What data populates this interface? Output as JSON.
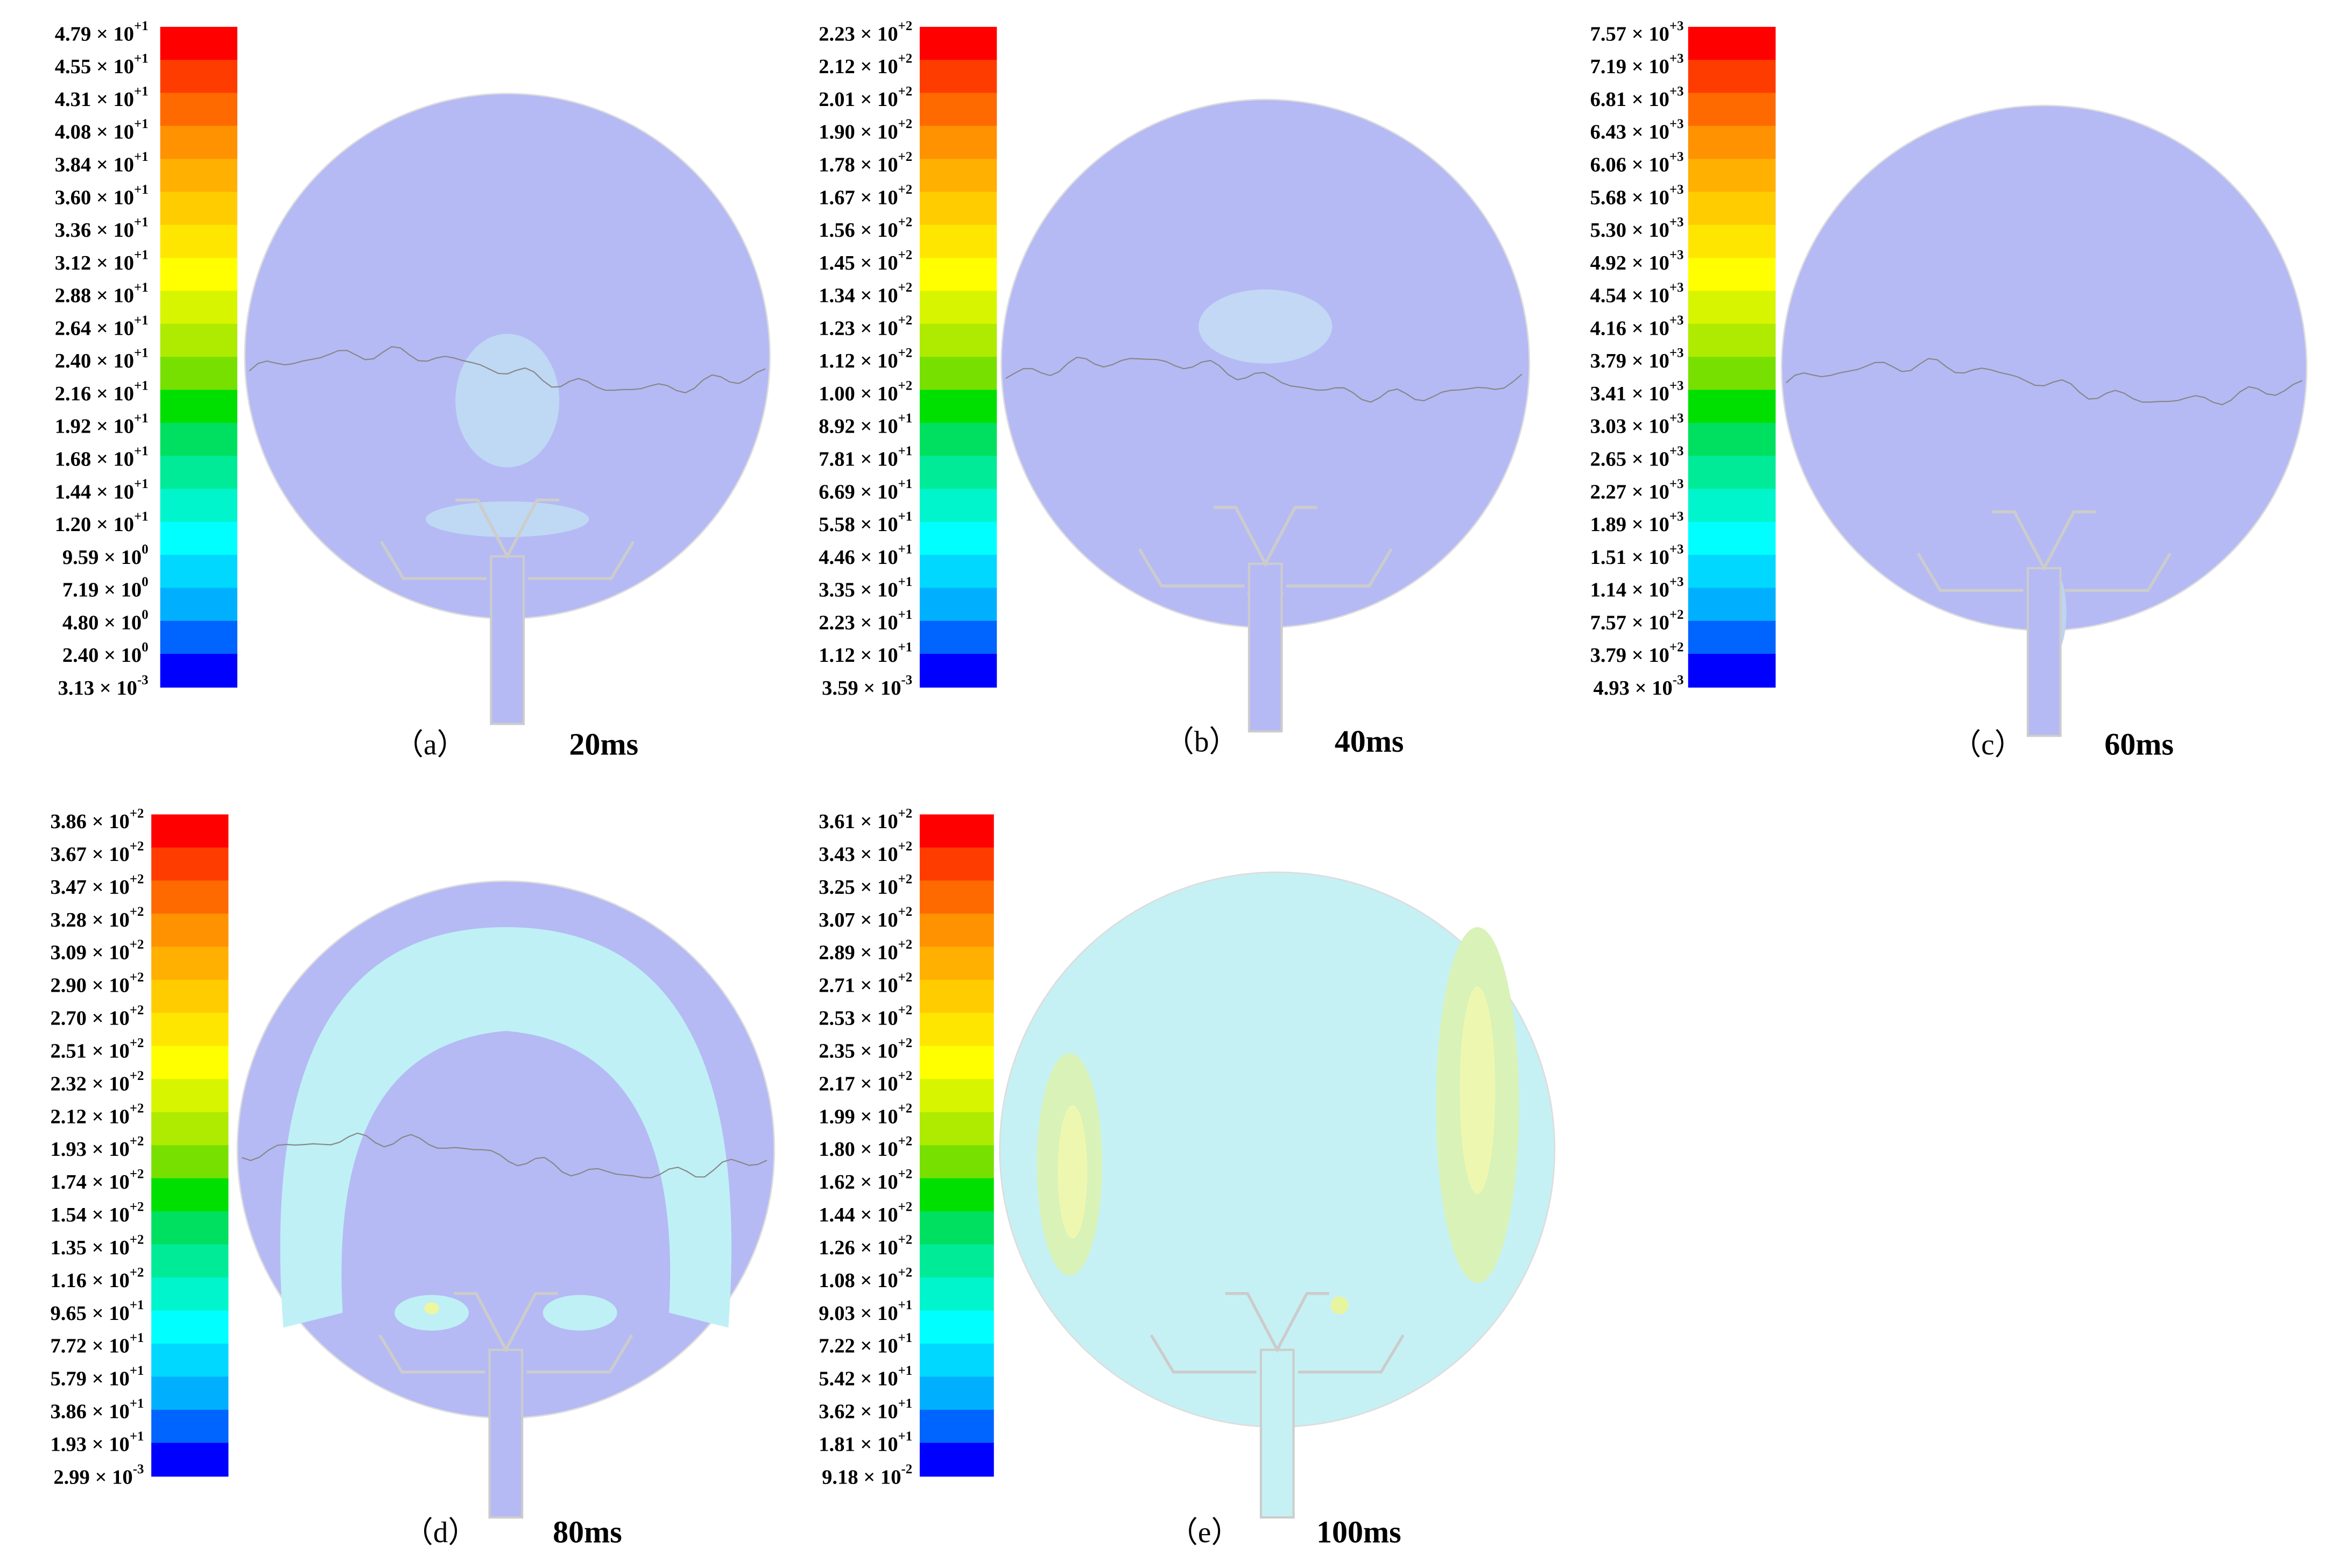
{
  "figure": {
    "colormap": [
      "#ff0000",
      "#ff3c00",
      "#ff6a00",
      "#ff9200",
      "#ffb000",
      "#ffcc00",
      "#ffe600",
      "#ffff00",
      "#d8f500",
      "#aeeb00",
      "#78e000",
      "#00e000",
      "#00e060",
      "#00eb98",
      "#00f5cc",
      "#00ffff",
      "#00d8ff",
      "#00b0ff",
      "#0064ff",
      "#0000ff"
    ],
    "panels": [
      {
        "caption": "（a）",
        "time": "20ms",
        "labels": [
          [
            "4.79 × 10",
            "+1"
          ],
          [
            "4.55 × 10",
            "+1"
          ],
          [
            "4.31 × 10",
            "+1"
          ],
          [
            "4.08 × 10",
            "+1"
          ],
          [
            "3.84 × 10",
            "+1"
          ],
          [
            "3.60 × 10",
            "+1"
          ],
          [
            "3.36 × 10",
            "+1"
          ],
          [
            "3.12 × 10",
            "+1"
          ],
          [
            "2.88 × 10",
            "+1"
          ],
          [
            "2.64 × 10",
            "+1"
          ],
          [
            "2.40 × 10",
            "+1"
          ],
          [
            "2.16 × 10",
            "+1"
          ],
          [
            "1.92 × 10",
            "+1"
          ],
          [
            "1.68 × 10",
            "+1"
          ],
          [
            "1.44 × 10",
            "+1"
          ],
          [
            "1.20 × 10",
            "+1"
          ],
          [
            "9.59 × 10",
            "0"
          ],
          [
            "7.19 × 10",
            "0"
          ],
          [
            "4.80 × 10",
            "0"
          ],
          [
            "2.40 × 10",
            "0"
          ],
          [
            "3.13 × 10",
            "-3"
          ]
        ]
      },
      {
        "caption": "（b）",
        "time": "40ms",
        "labels": [
          [
            "2.23 × 10",
            "+2"
          ],
          [
            "2.12 × 10",
            "+2"
          ],
          [
            "2.01 × 10",
            "+2"
          ],
          [
            "1.90 × 10",
            "+2"
          ],
          [
            "1.78 × 10",
            "+2"
          ],
          [
            "1.67 × 10",
            "+2"
          ],
          [
            "1.56 × 10",
            "+2"
          ],
          [
            "1.45 × 10",
            "+2"
          ],
          [
            "1.34 × 10",
            "+2"
          ],
          [
            "1.23 × 10",
            "+2"
          ],
          [
            "1.12 × 10",
            "+2"
          ],
          [
            "1.00 × 10",
            "+2"
          ],
          [
            "8.92 × 10",
            "+1"
          ],
          [
            "7.81 × 10",
            "+1"
          ],
          [
            "6.69 × 10",
            "+1"
          ],
          [
            "5.58 × 10",
            "+1"
          ],
          [
            "4.46 × 10",
            "+1"
          ],
          [
            "3.35 × 10",
            "+1"
          ],
          [
            "2.23 × 10",
            "+1"
          ],
          [
            "1.12 × 10",
            "+1"
          ],
          [
            "3.59 × 10",
            "-3"
          ]
        ]
      },
      {
        "caption": "（c）",
        "time": "60ms",
        "labels": [
          [
            "7.57 × 10",
            "+3"
          ],
          [
            "7.19 × 10",
            "+3"
          ],
          [
            "6.81 × 10",
            "+3"
          ],
          [
            "6.43 × 10",
            "+3"
          ],
          [
            "6.06 × 10",
            "+3"
          ],
          [
            "5.68 × 10",
            "+3"
          ],
          [
            "5.30 × 10",
            "+3"
          ],
          [
            "4.92 × 10",
            "+3"
          ],
          [
            "4.54 × 10",
            "+3"
          ],
          [
            "4.16 × 10",
            "+3"
          ],
          [
            "3.79 × 10",
            "+3"
          ],
          [
            "3.41 × 10",
            "+3"
          ],
          [
            "3.03 × 10",
            "+3"
          ],
          [
            "2.65 × 10",
            "+3"
          ],
          [
            "2.27 × 10",
            "+3"
          ],
          [
            "1.89 × 10",
            "+3"
          ],
          [
            "1.51 × 10",
            "+3"
          ],
          [
            "1.14 × 10",
            "+3"
          ],
          [
            "7.57 × 10",
            "+2"
          ],
          [
            "3.79 × 10",
            "+2"
          ],
          [
            "4.93 × 10",
            "-3"
          ]
        ]
      },
      {
        "caption": "（d）",
        "time": "80ms",
        "labels": [
          [
            "3.86 × 10",
            "+2"
          ],
          [
            "3.67 × 10",
            "+2"
          ],
          [
            "3.47 × 10",
            "+2"
          ],
          [
            "3.28 × 10",
            "+2"
          ],
          [
            "3.09 × 10",
            "+2"
          ],
          [
            "2.90 × 10",
            "+2"
          ],
          [
            "2.70 × 10",
            "+2"
          ],
          [
            "2.51 × 10",
            "+2"
          ],
          [
            "2.32 × 10",
            "+2"
          ],
          [
            "2.12 × 10",
            "+2"
          ],
          [
            "1.93 × 10",
            "+2"
          ],
          [
            "1.74 × 10",
            "+2"
          ],
          [
            "1.54 × 10",
            "+2"
          ],
          [
            "1.35 × 10",
            "+2"
          ],
          [
            "1.16 × 10",
            "+2"
          ],
          [
            "9.65 × 10",
            "+1"
          ],
          [
            "7.72 × 10",
            "+1"
          ],
          [
            "5.79 × 10",
            "+1"
          ],
          [
            "3.86 × 10",
            "+1"
          ],
          [
            "1.93 × 10",
            "+1"
          ],
          [
            "2.99 × 10",
            "-3"
          ]
        ]
      },
      {
        "caption": "（e）",
        "time": "100ms",
        "labels": [
          [
            "3.61 × 10",
            "+2"
          ],
          [
            "3.43 × 10",
            "+2"
          ],
          [
            "3.25 × 10",
            "+2"
          ],
          [
            "3.07 × 10",
            "+2"
          ],
          [
            "2.89 × 10",
            "+2"
          ],
          [
            "2.71 × 10",
            "+2"
          ],
          [
            "2.53 × 10",
            "+2"
          ],
          [
            "2.35 × 10",
            "+2"
          ],
          [
            "2.17 × 10",
            "+2"
          ],
          [
            "1.99 × 10",
            "+2"
          ],
          [
            "1.80 × 10",
            "+2"
          ],
          [
            "1.62 × 10",
            "+2"
          ],
          [
            "1.44 × 10",
            "+2"
          ],
          [
            "1.26 × 10",
            "+2"
          ],
          [
            "1.08 × 10",
            "+2"
          ],
          [
            "9.03 × 10",
            "+1"
          ],
          [
            "7.22 × 10",
            "+1"
          ],
          [
            "5.42 × 10",
            "+1"
          ],
          [
            "3.62 × 10",
            "+1"
          ],
          [
            "1.81 × 10",
            "+1"
          ],
          [
            "9.18 × 10",
            "-2"
          ]
        ]
      }
    ]
  }
}
